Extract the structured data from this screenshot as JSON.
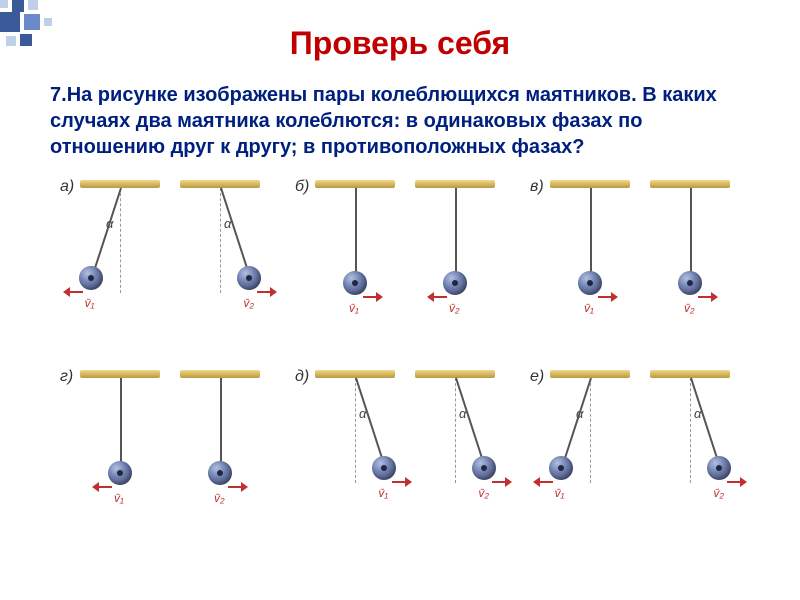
{
  "title": {
    "text": "Проверь себя",
    "color": "#c00000"
  },
  "question": {
    "number": "7.",
    "text": "На рисунке изображены пары колеблющихся маятников. В каких случаях два маятника колеблются: в одинаковых фазах по отношению друг к другу; в противоположных фазах?",
    "color": "#002080"
  },
  "corner": {
    "colors": {
      "dark": "#3a5a9a",
      "mid": "#6a8aca",
      "light": "#c0d0e8"
    }
  },
  "figure": {
    "bob_diameter": 24,
    "string_length": 95,
    "bar_color_top": "#f0d890",
    "bar_color_bottom": "#b89840",
    "arrow_color": "#c03030",
    "alpha_symbol": "α",
    "pairs": [
      {
        "label": "а)",
        "row": 0,
        "col": 0,
        "pendulums": [
          {
            "angle_deg": -18,
            "arrow_dir": "left",
            "v_label": "v̄₁",
            "show_alpha": true
          },
          {
            "angle_deg": 18,
            "arrow_dir": "right",
            "v_label": "v̄₂",
            "show_alpha": true
          }
        ]
      },
      {
        "label": "б)",
        "row": 0,
        "col": 1,
        "pendulums": [
          {
            "angle_deg": 0,
            "arrow_dir": "right",
            "v_label": "v̄₁",
            "show_alpha": false
          },
          {
            "angle_deg": 0,
            "arrow_dir": "left",
            "v_label": "v̄₂",
            "show_alpha": false
          }
        ]
      },
      {
        "label": "в)",
        "row": 0,
        "col": 2,
        "pendulums": [
          {
            "angle_deg": 0,
            "arrow_dir": "right",
            "v_label": "v̄₁",
            "show_alpha": false
          },
          {
            "angle_deg": 0,
            "arrow_dir": "right",
            "v_label": "v̄₂",
            "show_alpha": false
          }
        ]
      },
      {
        "label": "г)",
        "row": 1,
        "col": 0,
        "pendulums": [
          {
            "angle_deg": 0,
            "arrow_dir": "left",
            "v_label": "v̄₁",
            "show_alpha": false
          },
          {
            "angle_deg": 0,
            "arrow_dir": "right",
            "v_label": "v̄₂",
            "show_alpha": false
          }
        ]
      },
      {
        "label": "д)",
        "row": 1,
        "col": 1,
        "pendulums": [
          {
            "angle_deg": 18,
            "arrow_dir": "right",
            "v_label": "v̄₁",
            "show_alpha": true
          },
          {
            "angle_deg": 18,
            "arrow_dir": "right",
            "v_label": "v̄₂",
            "show_alpha": true
          }
        ]
      },
      {
        "label": "е)",
        "row": 1,
        "col": 2,
        "pendulums": [
          {
            "angle_deg": -18,
            "arrow_dir": "left",
            "v_label": "v̄₁",
            "show_alpha": true
          },
          {
            "angle_deg": 18,
            "arrow_dir": "right",
            "v_label": "v̄₂",
            "show_alpha": true
          }
        ]
      }
    ]
  }
}
